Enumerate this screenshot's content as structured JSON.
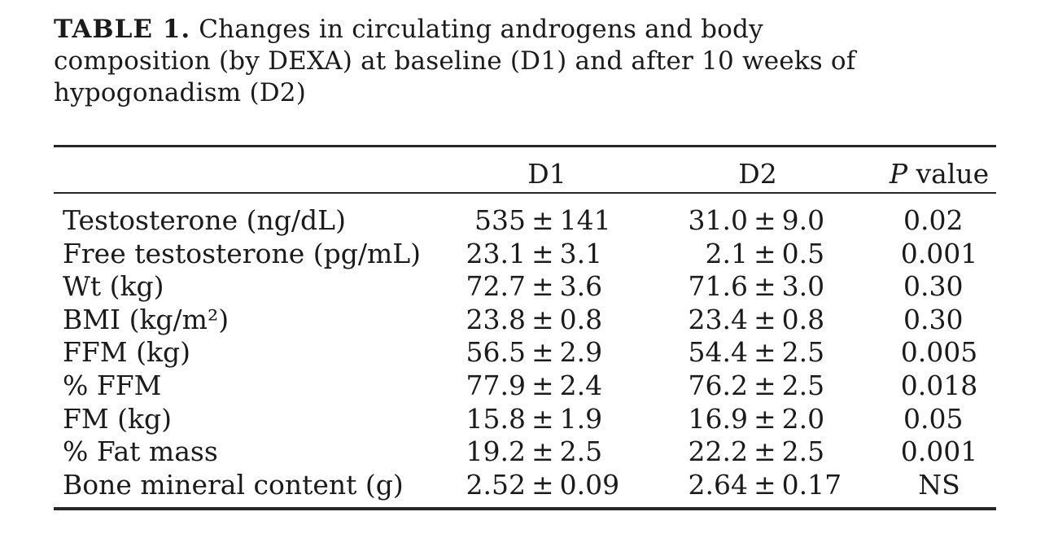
{
  "caption": {
    "label": "TABLE 1.",
    "line1_rest": "Changes in circulating androgens and body",
    "line2": "composition (by DEXA) at baseline (D1) and after 10 weeks of",
    "line3": "hypogonadism (D2)"
  },
  "table": {
    "pm": "±",
    "columns": {
      "d1": "D1",
      "d2": "D2",
      "p_italic": "P",
      "p_rest": " value"
    },
    "rows": [
      {
        "label": "Testosterone (ng/dL)",
        "d1m": "535",
        "d1s": "141",
        "d2m": "31.0",
        "d2s": "9.0",
        "p": "0.02"
      },
      {
        "label": "Free testosterone (pg/mL)",
        "d1m": "23.1",
        "d1s": "3.1",
        "d2m": "2.1",
        "d2s": "0.5",
        "p": "0.001"
      },
      {
        "label": "Wt (kg)",
        "d1m": "72.7",
        "d1s": "3.6",
        "d2m": "71.6",
        "d2s": "3.0",
        "p": "0.30"
      },
      {
        "label": "BMI (kg/m²)",
        "d1m": "23.8",
        "d1s": "0.8",
        "d2m": "23.4",
        "d2s": "0.8",
        "p": "0.30"
      },
      {
        "label": "FFM (kg)",
        "d1m": "56.5",
        "d1s": "2.9",
        "d2m": "54.4",
        "d2s": "2.5",
        "p": "0.005"
      },
      {
        "label": "% FFM",
        "d1m": "77.9",
        "d1s": "2.4",
        "d2m": "76.2",
        "d2s": "2.5",
        "p": "0.018"
      },
      {
        "label": "FM (kg)",
        "d1m": "15.8",
        "d1s": "1.9",
        "d2m": "16.9",
        "d2s": "2.0",
        "p": "0.05"
      },
      {
        "label": "% Fat mass",
        "d1m": "19.2",
        "d1s": "2.5",
        "d2m": "22.2",
        "d2s": "2.5",
        "p": "0.001"
      },
      {
        "label": "Bone mineral content (g)",
        "d1m": "2.52",
        "d1s": "0.09",
        "d2m": "2.64",
        "d2s": "0.17",
        "p": "NS"
      }
    ]
  },
  "colors": {
    "background": "#ffffff",
    "text": "#1b1b1b",
    "rule": "#262626"
  }
}
